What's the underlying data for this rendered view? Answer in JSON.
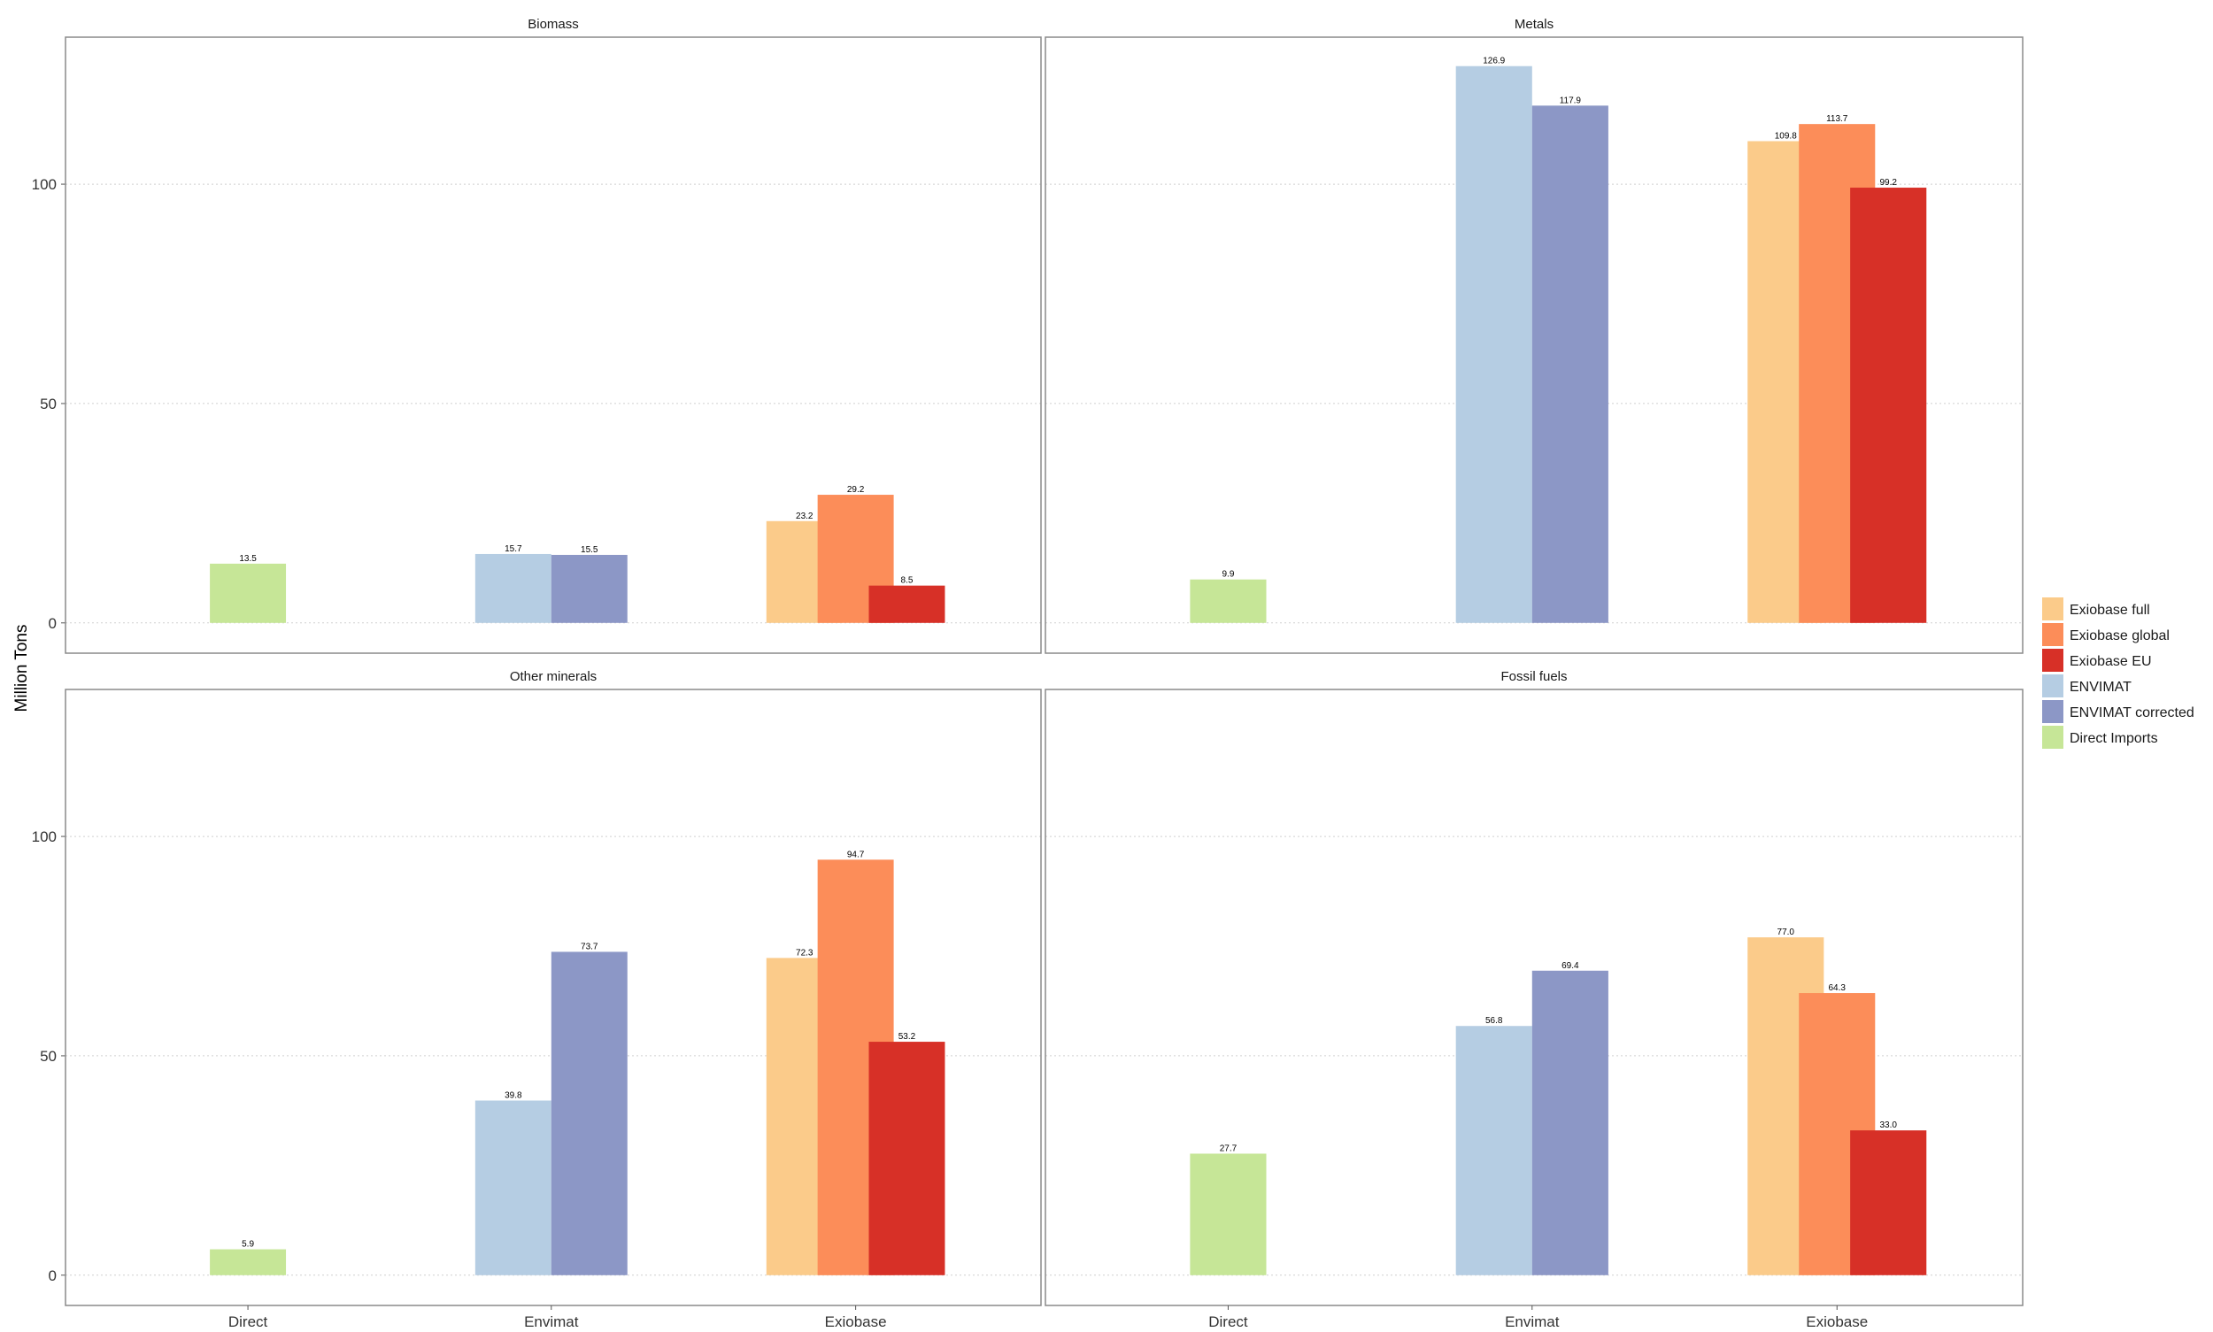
{
  "chart_data": {
    "type": "bar",
    "ylabel": "Million Tons",
    "xlabel": "",
    "ylim": [
      -6.9,
      133.5
    ],
    "yticks": [
      0,
      50,
      100
    ],
    "grid": true,
    "legend_position": "right",
    "categories": [
      "Direct",
      "Envimat",
      "Exiobase"
    ],
    "series_defs": [
      {
        "name": "Exiobase full",
        "color": "#FBCB8A",
        "category": "Exiobase"
      },
      {
        "name": "Exiobase global",
        "color": "#FC8D59",
        "category": "Exiobase"
      },
      {
        "name": "Exiobase EU",
        "color": "#D73027",
        "category": "Exiobase"
      },
      {
        "name": "ENVIMAT",
        "color": "#B5CDE3",
        "category": "Envimat"
      },
      {
        "name": "ENVIMAT corrected",
        "color": "#8C97C6",
        "category": "Envimat"
      },
      {
        "name": "Direct Imports",
        "color": "#C6E697",
        "category": "Direct"
      }
    ],
    "panels": [
      {
        "title": "Biomass",
        "values": {
          "Direct Imports": 13.5,
          "ENVIMAT": 15.7,
          "ENVIMAT corrected": 15.5,
          "Exiobase full": 23.2,
          "Exiobase global": 29.2,
          "Exiobase EU": 8.5
        },
        "labels": {
          "Direct Imports": "13.5",
          "ENVIMAT": "15.7",
          "ENVIMAT corrected": "15.5",
          "Exiobase full": "23.2",
          "Exiobase global": "29.2",
          "Exiobase EU": "8.5"
        }
      },
      {
        "title": "Metals",
        "values": {
          "Direct Imports": 9.9,
          "ENVIMAT": 126.9,
          "ENVIMAT corrected": 117.9,
          "Exiobase full": 109.8,
          "Exiobase global": 113.7,
          "Exiobase EU": 99.2
        },
        "labels": {
          "Direct Imports": "9.9",
          "ENVIMAT": "126.9",
          "ENVIMAT corrected": "117.9",
          "Exiobase full": "109.8",
          "Exiobase global": "113.7",
          "Exiobase EU": "99.2"
        }
      },
      {
        "title": "Other minerals",
        "values": {
          "Direct Imports": 5.9,
          "ENVIMAT": 39.8,
          "ENVIMAT corrected": 73.7,
          "Exiobase full": 72.3,
          "Exiobase global": 94.7,
          "Exiobase EU": 53.2
        },
        "labels": {
          "Direct Imports": "5.9",
          "ENVIMAT": "39.8",
          "ENVIMAT corrected": "73.7",
          "Exiobase full": "72.3",
          "Exiobase global": "94.7",
          "Exiobase EU": "53.2"
        }
      },
      {
        "title": "Fossil fuels",
        "values": {
          "Direct Imports": 27.7,
          "ENVIMAT": 56.8,
          "ENVIMAT corrected": 69.4,
          "Exiobase full": 77.0,
          "Exiobase global": 64.3,
          "Exiobase EU": 33.0
        },
        "labels": {
          "Direct Imports": "27.7",
          "ENVIMAT": "56.8",
          "ENVIMAT corrected": "69.4",
          "Exiobase full": "77.0",
          "Exiobase global": "64.3",
          "Exiobase EU": "33.0"
        }
      }
    ]
  }
}
